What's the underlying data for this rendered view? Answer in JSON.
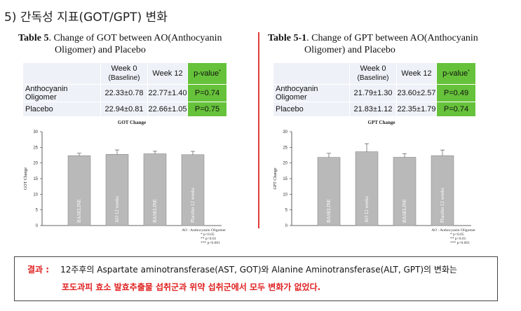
{
  "section_title": "5) 간독성 지표(GOT/GPT) 변화",
  "got": {
    "table_label": "Table 5",
    "title_rest": ". Change of GOT between AO(Anthocyanin",
    "title_line2": "Oligomer) and Placebo",
    "headers": [
      "",
      "Week 0",
      "(Baseline)",
      "Week 12",
      "p-value"
    ],
    "rows": [
      {
        "label": "Anthocyanin Oligomer",
        "w0": "22.33±0.78",
        "w12": "22.77±1.40",
        "p": "P=0.74"
      },
      {
        "label": "Placebo",
        "w0": "22.94±0.81",
        "w12": "22.66±1.05",
        "p": "P=0.75"
      }
    ],
    "chart_data": {
      "type": "bar",
      "title": "GOT Change",
      "ylabel": "GOT Change",
      "categories": [
        "BASELINE",
        "AO 12 weeks",
        "BASELINE",
        "Placebo 12 weeks"
      ],
      "values": [
        22.33,
        22.77,
        22.94,
        22.66
      ],
      "errors": [
        0.78,
        1.4,
        0.81,
        1.05
      ],
      "ylim": [
        0,
        30
      ],
      "yticks": [
        0,
        5,
        10,
        15,
        20,
        25,
        30
      ],
      "footnote": [
        "AO : Anthocyanin Oligomer",
        "*       p<0.05",
        "**      p<0.01",
        "***     p<0.001"
      ]
    }
  },
  "gpt": {
    "table_label": "Table 5-1",
    "title_rest": ". Change of GPT between AO(Anthocyanin",
    "title_line2": "Oligomer) and Placebo",
    "headers": [
      "",
      "Week 0",
      "(Baseline)",
      "Week 12",
      "p-value"
    ],
    "rows": [
      {
        "label": "Anthocyanin  Oligomer",
        "w0": "21.79±1.30",
        "w12": "23.60±2.57",
        "p": "P=0.49"
      },
      {
        "label": "Placebo",
        "w0": "21.83±1.12",
        "w12": "22.35±1.79",
        "p": "P=0.74"
      }
    ],
    "chart_data": {
      "type": "bar",
      "title": "GPT Change",
      "ylabel": "GPT Change",
      "categories": [
        "BASELINE",
        "AO 12 weeks",
        "BASELINE",
        "Placebo 12 weeks"
      ],
      "values": [
        21.79,
        23.6,
        21.83,
        22.35
      ],
      "errors": [
        1.3,
        2.57,
        1.12,
        1.79
      ],
      "ylim": [
        0,
        30
      ],
      "yticks": [
        0,
        5,
        10,
        15,
        20,
        25,
        30
      ],
      "footnote": [
        "AO : Anthocyanin Oligomer",
        "*       p<0.05",
        "**      p<0.01",
        "***     p<0.001"
      ]
    }
  },
  "result": {
    "label": "결과 :",
    "line1": "12주후의  Aspartate aminotransferase(AST, GOT)와 Alanine Aminotransferase(ALT, GPT)의  변화는",
    "line2": "포도과피 효소 발효추출물 섭취군과  위약  섭취군에서 모두 변화가  없었다."
  }
}
